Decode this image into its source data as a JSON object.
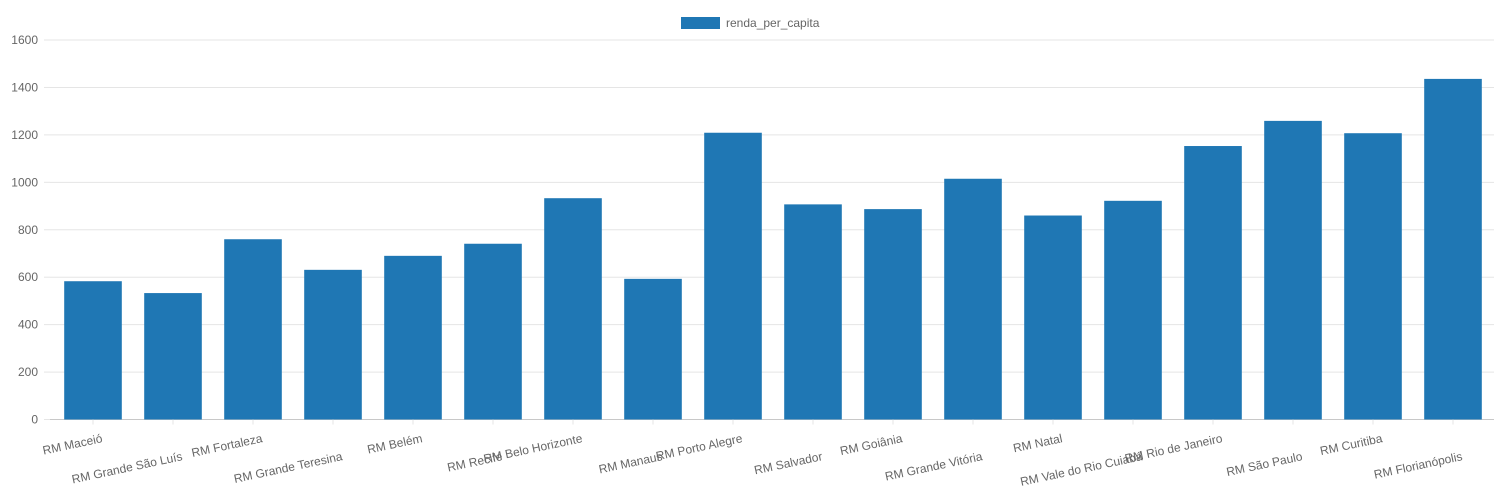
{
  "chart_data": {
    "type": "bar",
    "categories": [
      "RM Maceió",
      "RM Grande São Luís",
      "RM Fortaleza",
      "RM Grande Teresina",
      "RM Belém",
      "RM Recife",
      "RM Belo Horizonte",
      "RM Manaus",
      "RM Porto Alegre",
      "RM Salvador",
      "RM Goiânia",
      "RM Grande Vitória",
      "RM Natal",
      "RM Vale do Rio Cuiabá",
      "RM Rio de Janeiro",
      "RM São Paulo",
      "RM Curitiba",
      "RM Florianópolis"
    ],
    "series": [
      {
        "name": "renda_per_capita",
        "color": "#1f77b4",
        "values": [
          583,
          533,
          760,
          631,
          690,
          741,
          933,
          593,
          1209,
          907,
          887,
          1015,
          860,
          922,
          1153,
          1259,
          1207,
          1436
        ]
      }
    ],
    "ylim": [
      0,
      1600
    ],
    "yticks": [
      "0",
      "200",
      "400",
      "600",
      "800",
      "1000",
      "1200",
      "1400",
      "1600"
    ],
    "legend_position": "top-center",
    "grid": true
  }
}
